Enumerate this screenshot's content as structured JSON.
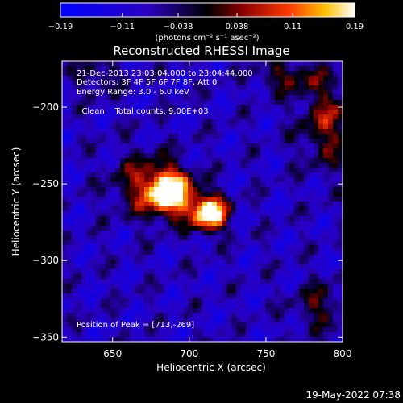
{
  "colorbar": {
    "min": -0.19,
    "max": 0.19,
    "tick_labels": [
      "-0.19",
      "-0.11",
      "-0.038",
      "0.038",
      "0.11",
      "0.19"
    ],
    "unit_label": "(photons cm⁻² s⁻¹ asec⁻²)"
  },
  "chart_data": {
    "type": "heatmap",
    "title": "Reconstructed RHESSI Image",
    "xlabel": "Heliocentric X (arcsec)",
    "ylabel": "Heliocentric Y (arcsec)",
    "xlim": [
      617,
      800
    ],
    "ylim": [
      -353,
      -170
    ],
    "x_ticks": [
      650,
      700,
      750,
      800
    ],
    "x_tick_labels": [
      "650",
      "700",
      "750",
      "800"
    ],
    "y_ticks": [
      -200,
      -250,
      -300,
      -350
    ],
    "y_tick_labels": [
      "-200",
      "-250",
      "-300",
      "-350"
    ],
    "peak": [
      713,
      -269
    ],
    "sources": [
      {
        "x": 688,
        "y": -256,
        "amp": 0.19,
        "sigma": 10
      },
      {
        "x": 713,
        "y": -269,
        "amp": 0.19,
        "sigma": 8
      },
      {
        "x": 670,
        "y": -250,
        "amp": 0.07,
        "sigma": 14
      }
    ]
  },
  "annotations": {
    "time_range": "21-Dec-2013 23:03:04.000 to 23:04:44.000",
    "detectors": "Detectors: 3F 4F 5F 6F 7F 8F, Att 0",
    "energy": "Energy Range: 3.0 - 6.0 keV",
    "method": "Clean",
    "counts": "Total counts: 9.00E+03",
    "peak_text": "Position of Peak = [713,-269]"
  },
  "footer": {
    "timestamp": "19-May-2022 07:38"
  }
}
